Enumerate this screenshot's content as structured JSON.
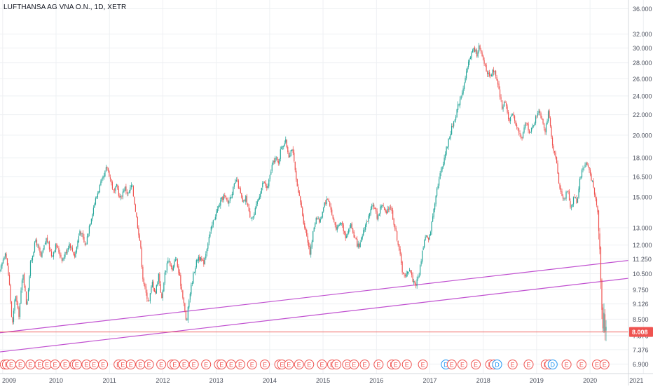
{
  "header": {
    "title": "LUFTHANSA AG VNA O.N., 1D, XETR"
  },
  "colors": {
    "up": "#26a69a",
    "down": "#ef5350",
    "trendline": "#c050d0",
    "price_line": "#ef5350",
    "price_badge": "#ef5350",
    "grid": "#eef0f3",
    "axis_text": "#4a4f5c",
    "earnings": "#ef5350",
    "dividend": "#2196f3"
  },
  "chart_data": {
    "type": "candlestick",
    "title": "LUFTHANSA AG VNA O.N., 1D, XETR",
    "x_ticks": [
      "2009",
      "2010",
      "2011",
      "2012",
      "2013",
      "2014",
      "2015",
      "2016",
      "2017",
      "2018",
      "2019",
      "2020",
      "2021"
    ],
    "x_range": [
      2008.95,
      2020.72
    ],
    "y_scale": "log",
    "y_range": [
      6.6,
      37.5
    ],
    "y_ticks": [
      "36.000",
      "32.000",
      "30.000",
      "28.000",
      "26.000",
      "24.000",
      "22.000",
      "20.000",
      "18.000",
      "16.500",
      "15.000",
      "13.000",
      "12.000",
      "11.250",
      "10.500",
      "9.750",
      "9.126",
      "8.500",
      "7.876",
      "7.376",
      "6.900"
    ],
    "grid": true,
    "last_price": "8.008",
    "price_path": [
      [
        2008.95,
        10.6
      ],
      [
        2009.05,
        11.7
      ],
      [
        2009.12,
        10.2
      ],
      [
        2009.18,
        8.2
      ],
      [
        2009.24,
        9.6
      ],
      [
        2009.3,
        8.6
      ],
      [
        2009.38,
        10.6
      ],
      [
        2009.45,
        9.0
      ],
      [
        2009.52,
        11.0
      ],
      [
        2009.62,
        12.3
      ],
      [
        2009.72,
        11.3
      ],
      [
        2009.82,
        12.4
      ],
      [
        2009.92,
        11.4
      ],
      [
        2010.0,
        12.0
      ],
      [
        2010.12,
        11.2
      ],
      [
        2010.25,
        12.1
      ],
      [
        2010.35,
        11.4
      ],
      [
        2010.45,
        12.9
      ],
      [
        2010.55,
        11.9
      ],
      [
        2010.62,
        13.1
      ],
      [
        2010.72,
        14.6
      ],
      [
        2010.82,
        15.8
      ],
      [
        2010.9,
        16.5
      ],
      [
        2010.95,
        17.3
      ],
      [
        2011.0,
        16.6
      ],
      [
        2011.08,
        15.3
      ],
      [
        2011.14,
        15.8
      ],
      [
        2011.2,
        14.8
      ],
      [
        2011.28,
        15.7
      ],
      [
        2011.35,
        15.2
      ],
      [
        2011.42,
        15.9
      ],
      [
        2011.46,
        14.8
      ],
      [
        2011.52,
        13.3
      ],
      [
        2011.58,
        12.0
      ],
      [
        2011.62,
        10.4
      ],
      [
        2011.68,
        9.6
      ],
      [
        2011.74,
        9.2
      ],
      [
        2011.8,
        10.1
      ],
      [
        2011.86,
        9.6
      ],
      [
        2011.92,
        10.5
      ],
      [
        2011.98,
        9.3
      ],
      [
        2012.03,
        10.4
      ],
      [
        2012.1,
        11.3
      ],
      [
        2012.18,
        10.6
      ],
      [
        2012.24,
        11.4
      ],
      [
        2012.32,
        10.2
      ],
      [
        2012.38,
        9.4
      ],
      [
        2012.44,
        8.3
      ],
      [
        2012.5,
        9.5
      ],
      [
        2012.58,
        10.6
      ],
      [
        2012.66,
        11.4
      ],
      [
        2012.76,
        11.0
      ],
      [
        2012.86,
        12.4
      ],
      [
        2012.96,
        13.6
      ],
      [
        2013.06,
        14.5
      ],
      [
        2013.14,
        15.1
      ],
      [
        2013.22,
        14.6
      ],
      [
        2013.32,
        15.6
      ],
      [
        2013.38,
        16.3
      ],
      [
        2013.44,
        15.4
      ],
      [
        2013.5,
        14.5
      ],
      [
        2013.56,
        15.0
      ],
      [
        2013.62,
        13.8
      ],
      [
        2013.7,
        13.7
      ],
      [
        2013.78,
        14.8
      ],
      [
        2013.88,
        16.1
      ],
      [
        2013.96,
        15.6
      ],
      [
        2014.04,
        17.3
      ],
      [
        2014.1,
        18.0
      ],
      [
        2014.16,
        17.6
      ],
      [
        2014.22,
        19.0
      ],
      [
        2014.3,
        19.4
      ],
      [
        2014.36,
        18.2
      ],
      [
        2014.42,
        18.9
      ],
      [
        2014.46,
        17.5
      ],
      [
        2014.52,
        15.5
      ],
      [
        2014.58,
        14.6
      ],
      [
        2014.64,
        13.3
      ],
      [
        2014.7,
        12.5
      ],
      [
        2014.76,
        11.5
      ],
      [
        2014.82,
        12.9
      ],
      [
        2014.88,
        13.8
      ],
      [
        2014.94,
        13.3
      ],
      [
        2015.02,
        14.6
      ],
      [
        2015.1,
        14.9
      ],
      [
        2015.18,
        13.6
      ],
      [
        2015.26,
        12.9
      ],
      [
        2015.34,
        13.4
      ],
      [
        2015.42,
        12.5
      ],
      [
        2015.52,
        13.2
      ],
      [
        2015.6,
        12.3
      ],
      [
        2015.68,
        11.8
      ],
      [
        2015.76,
        12.9
      ],
      [
        2015.86,
        13.7
      ],
      [
        2015.94,
        14.5
      ],
      [
        2016.02,
        13.6
      ],
      [
        2016.1,
        14.6
      ],
      [
        2016.18,
        13.8
      ],
      [
        2016.26,
        14.5
      ],
      [
        2016.34,
        13.1
      ],
      [
        2016.42,
        11.9
      ],
      [
        2016.48,
        10.7
      ],
      [
        2016.54,
        10.3
      ],
      [
        2016.62,
        10.8
      ],
      [
        2016.68,
        10.2
      ],
      [
        2016.74,
        10.0
      ],
      [
        2016.8,
        10.5
      ],
      [
        2016.86,
        11.7
      ],
      [
        2016.92,
        12.6
      ],
      [
        2016.98,
        12.2
      ],
      [
        2017.04,
        13.4
      ],
      [
        2017.12,
        15.4
      ],
      [
        2017.2,
        16.8
      ],
      [
        2017.3,
        18.6
      ],
      [
        2017.4,
        20.5
      ],
      [
        2017.48,
        21.9
      ],
      [
        2017.56,
        23.6
      ],
      [
        2017.66,
        25.8
      ],
      [
        2017.74,
        28.6
      ],
      [
        2017.82,
        29.9
      ],
      [
        2017.88,
        29.2
      ],
      [
        2017.92,
        30.2
      ],
      [
        2017.96,
        29.1
      ],
      [
        2018.04,
        27.6
      ],
      [
        2018.12,
        26.0
      ],
      [
        2018.2,
        27.1
      ],
      [
        2018.28,
        25.0
      ],
      [
        2018.36,
        22.6
      ],
      [
        2018.42,
        23.6
      ],
      [
        2018.48,
        21.2
      ],
      [
        2018.56,
        22.1
      ],
      [
        2018.64,
        20.6
      ],
      [
        2018.72,
        19.6
      ],
      [
        2018.8,
        21.3
      ],
      [
        2018.88,
        20.2
      ],
      [
        2018.96,
        21.3
      ],
      [
        2019.04,
        22.6
      ],
      [
        2019.1,
        21.6
      ],
      [
        2019.16,
        20.5
      ],
      [
        2019.22,
        22.2
      ],
      [
        2019.26,
        20.6
      ],
      [
        2019.3,
        18.7
      ],
      [
        2019.36,
        18.0
      ],
      [
        2019.42,
        16.0
      ],
      [
        2019.46,
        15.2
      ],
      [
        2019.52,
        14.9
      ],
      [
        2019.58,
        15.5
      ],
      [
        2019.64,
        14.2
      ],
      [
        2019.7,
        15.1
      ],
      [
        2019.76,
        14.6
      ],
      [
        2019.8,
        16.2
      ],
      [
        2019.86,
        17.1
      ],
      [
        2019.92,
        17.6
      ],
      [
        2019.98,
        17.1
      ],
      [
        2020.04,
        16.1
      ],
      [
        2020.08,
        15.2
      ],
      [
        2020.12,
        14.6
      ],
      [
        2020.16,
        13.4
      ],
      [
        2020.18,
        11.9
      ],
      [
        2020.2,
        10.6
      ],
      [
        2020.22,
        9.2
      ],
      [
        2020.24,
        8.4
      ],
      [
        2020.26,
        8.8
      ],
      [
        2020.28,
        8.1
      ],
      [
        2020.3,
        8.008
      ]
    ],
    "trendlines": [
      {
        "from": [
          2008.95,
          7.98
        ],
        "to": [
          2020.72,
          11.17
        ]
      },
      {
        "from": [
          2008.95,
          7.3
        ],
        "to": [
          2020.72,
          10.28
        ]
      }
    ],
    "events": [
      {
        "x": 2009.04,
        "label": "E"
      },
      {
        "x": 2009.08,
        "label": "E"
      },
      {
        "x": 2009.16,
        "label": "E"
      },
      {
        "x": 2009.33,
        "label": "E"
      },
      {
        "x": 2009.52,
        "label": "E"
      },
      {
        "x": 2009.69,
        "label": "E"
      },
      {
        "x": 2009.83,
        "label": "E"
      },
      {
        "x": 2009.98,
        "label": "E"
      },
      {
        "x": 2010.17,
        "label": "E"
      },
      {
        "x": 2010.35,
        "label": "E"
      },
      {
        "x": 2010.39,
        "label": "E"
      },
      {
        "x": 2010.57,
        "label": "E"
      },
      {
        "x": 2010.71,
        "label": "E"
      },
      {
        "x": 2010.88,
        "label": "E"
      },
      {
        "x": 2011.17,
        "label": "E"
      },
      {
        "x": 2011.25,
        "label": "E"
      },
      {
        "x": 2011.4,
        "label": "E"
      },
      {
        "x": 2011.58,
        "label": "E"
      },
      {
        "x": 2011.74,
        "label": "E"
      },
      {
        "x": 2011.97,
        "label": "E"
      },
      {
        "x": 2012.17,
        "label": "E"
      },
      {
        "x": 2012.22,
        "label": "E"
      },
      {
        "x": 2012.4,
        "label": "E"
      },
      {
        "x": 2012.58,
        "label": "E"
      },
      {
        "x": 2012.81,
        "label": "E"
      },
      {
        "x": 2013.05,
        "label": "E"
      },
      {
        "x": 2013.1,
        "label": "E"
      },
      {
        "x": 2013.28,
        "label": "E"
      },
      {
        "x": 2013.45,
        "label": "E"
      },
      {
        "x": 2013.67,
        "label": "E"
      },
      {
        "x": 2013.91,
        "label": "E"
      },
      {
        "x": 2014.18,
        "label": "E"
      },
      {
        "x": 2014.23,
        "label": "E"
      },
      {
        "x": 2014.36,
        "label": "E"
      },
      {
        "x": 2014.55,
        "label": "E"
      },
      {
        "x": 2014.74,
        "label": "E"
      },
      {
        "x": 2014.98,
        "label": "E"
      },
      {
        "x": 2015.17,
        "label": "E"
      },
      {
        "x": 2015.25,
        "label": "E"
      },
      {
        "x": 2015.45,
        "label": "E"
      },
      {
        "x": 2015.58,
        "label": "E"
      },
      {
        "x": 2015.78,
        "label": "E"
      },
      {
        "x": 2016.04,
        "label": "E"
      },
      {
        "x": 2016.29,
        "label": "E"
      },
      {
        "x": 2016.36,
        "label": "E"
      },
      {
        "x": 2016.57,
        "label": "E"
      },
      {
        "x": 2016.87,
        "label": "E"
      },
      {
        "x": 2017.3,
        "label": "D"
      },
      {
        "x": 2017.41,
        "label": "E"
      },
      {
        "x": 2017.61,
        "label": "E"
      },
      {
        "x": 2017.86,
        "label": "E"
      },
      {
        "x": 2018.13,
        "label": "E"
      },
      {
        "x": 2018.2,
        "label": "E"
      },
      {
        "x": 2018.26,
        "label": "D"
      },
      {
        "x": 2018.55,
        "label": "E"
      },
      {
        "x": 2018.85,
        "label": "E"
      },
      {
        "x": 2019.17,
        "label": "E"
      },
      {
        "x": 2019.24,
        "label": "E"
      },
      {
        "x": 2019.3,
        "label": "D"
      },
      {
        "x": 2019.56,
        "label": "E"
      },
      {
        "x": 2019.84,
        "label": "E"
      },
      {
        "x": 2020.13,
        "label": "E"
      },
      {
        "x": 2020.27,
        "label": "E"
      }
    ]
  }
}
